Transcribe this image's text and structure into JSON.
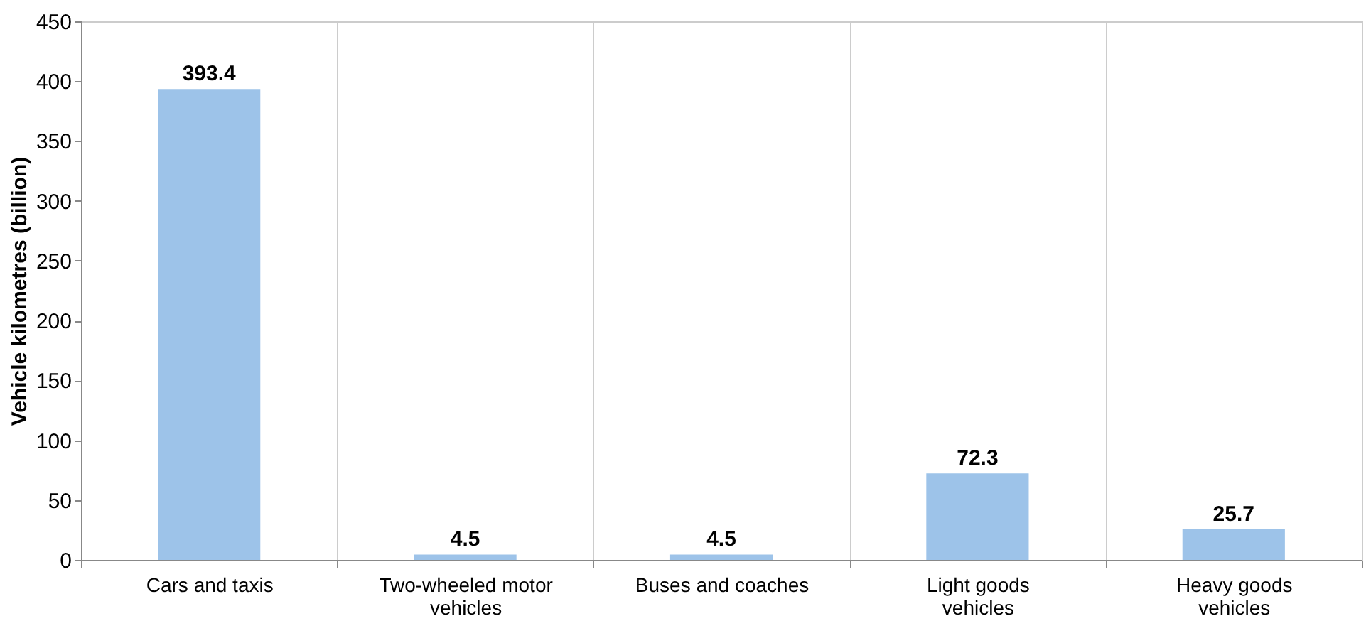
{
  "chart_data": {
    "type": "bar",
    "ylabel": "Vehicle kilometres (billion)",
    "categories": [
      "Cars and taxis",
      "Two-wheeled motor vehicles",
      "Buses and coaches",
      "Light goods vehicles",
      "Heavy goods vehicles"
    ],
    "values": [
      393.4,
      4.5,
      4.5,
      72.3,
      25.7
    ],
    "color": "#9dc3e9",
    "ylim": [
      0,
      450
    ],
    "yticks": [
      0,
      50,
      100,
      150,
      200,
      250,
      300,
      350,
      400,
      450
    ],
    "grid": "x",
    "data_labels": true
  }
}
